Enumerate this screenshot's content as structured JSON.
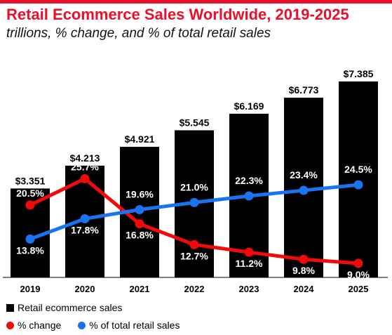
{
  "title": "Retail Ecommerce Sales Worldwide, 2019-2025",
  "subtitle": "trillions, % change, and % of total retail sales",
  "chart_data": {
    "type": "bar",
    "categories": [
      "2019",
      "2020",
      "2021",
      "2022",
      "2023",
      "2024",
      "2025"
    ],
    "series": [
      {
        "name": "Retail ecommerce sales",
        "kind": "bar",
        "color": "#000000",
        "values": [
          3.351,
          4.213,
          4.921,
          5.545,
          6.169,
          6.773,
          7.385
        ],
        "labels": [
          "$3.351",
          "$4.213",
          "$4.921",
          "$5.545",
          "$6.169",
          "$6.773",
          "$7.385"
        ]
      },
      {
        "name": "% change",
        "kind": "line",
        "color": "#f20a0a",
        "values": [
          20.5,
          25.7,
          16.8,
          12.7,
          11.2,
          9.8,
          9.0
        ],
        "labels": [
          "20.5%",
          "25.7%",
          "16.8%",
          "12.7%",
          "11.2%",
          "9.8%",
          "9.0%"
        ]
      },
      {
        "name": "% of total retail sales",
        "kind": "line",
        "color": "#1a73f0",
        "values": [
          13.8,
          17.8,
          19.6,
          21.0,
          22.3,
          23.4,
          24.5
        ],
        "labels": [
          "13.8%",
          "17.8%",
          "19.6%",
          "21.0%",
          "22.3%",
          "23.4%",
          "24.5%"
        ]
      }
    ],
    "grid": false,
    "legend_position": "bottom-left"
  }
}
